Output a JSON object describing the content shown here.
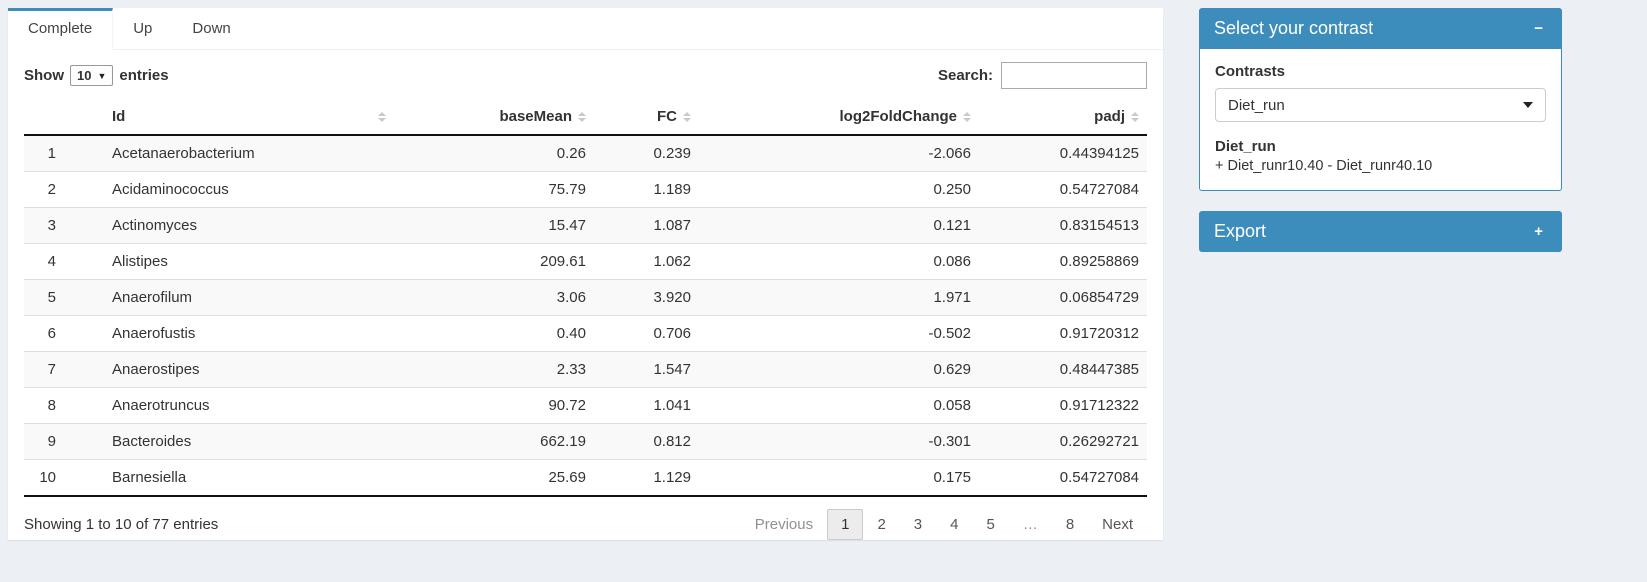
{
  "tabs": [
    {
      "label": "Complete",
      "active": true
    },
    {
      "label": "Up",
      "active": false
    },
    {
      "label": "Down",
      "active": false
    }
  ],
  "length_control": {
    "prefix": "Show",
    "value": "10",
    "suffix": "entries"
  },
  "search": {
    "label": "Search:",
    "value": ""
  },
  "table": {
    "columns": [
      "",
      "Id",
      "baseMean",
      "FC",
      "log2FoldChange",
      "padj"
    ],
    "rows": [
      [
        "1",
        "Acetanaerobacterium",
        "0.26",
        "0.239",
        "-2.066",
        "0.44394125"
      ],
      [
        "2",
        "Acidaminococcus",
        "75.79",
        "1.189",
        "0.250",
        "0.54727084"
      ],
      [
        "3",
        "Actinomyces",
        "15.47",
        "1.087",
        "0.121",
        "0.83154513"
      ],
      [
        "4",
        "Alistipes",
        "209.61",
        "1.062",
        "0.086",
        "0.89258869"
      ],
      [
        "5",
        "Anaerofilum",
        "3.06",
        "3.920",
        "1.971",
        "0.06854729"
      ],
      [
        "6",
        "Anaerofustis",
        "0.40",
        "0.706",
        "-0.502",
        "0.91720312"
      ],
      [
        "7",
        "Anaerostipes",
        "2.33",
        "1.547",
        "0.629",
        "0.48447385"
      ],
      [
        "8",
        "Anaerotruncus",
        "90.72",
        "1.041",
        "0.058",
        "0.91712322"
      ],
      [
        "9",
        "Bacteroides",
        "662.19",
        "0.812",
        "-0.301",
        "0.26292721"
      ],
      [
        "10",
        "Barnesiella",
        "25.69",
        "1.129",
        "0.175",
        "0.54727084"
      ]
    ],
    "info": "Showing 1 to 10 of 77 entries",
    "pagination": {
      "previous": "Previous",
      "pages": [
        "1",
        "2",
        "3",
        "4",
        "5",
        "…",
        "8"
      ],
      "active": "1",
      "disabled": [
        "…"
      ],
      "next": "Next"
    }
  },
  "sidebar": {
    "contrast_box": {
      "title": "Select your contrast",
      "collapse_icon": "minus",
      "collapse_glyph": "−",
      "contrasts_label": "Contrasts",
      "selected_contrast": "Diet_run",
      "contrast_name": "Diet_run",
      "contrast_formula": "+ Diet_runr10.40 - Diet_runr40.10"
    },
    "export_box": {
      "title": "Export",
      "collapse_icon": "plus",
      "collapse_glyph": "+"
    }
  },
  "colors": {
    "primary": "#3c8dbc",
    "page_bg": "#ecf0f5",
    "stripe": "#f9f9f9"
  }
}
